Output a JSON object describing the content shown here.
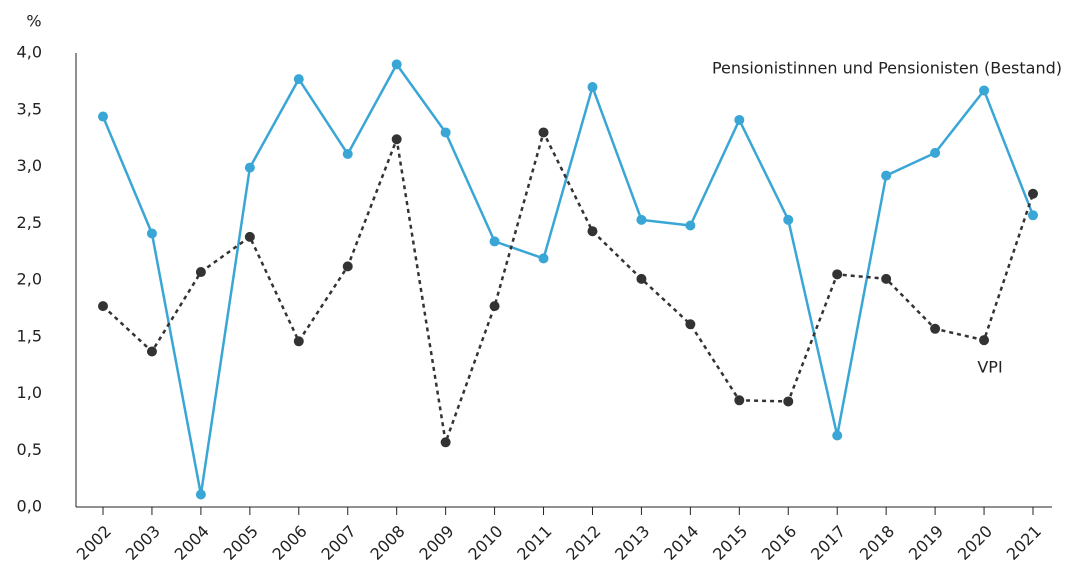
{
  "chart_data": {
    "type": "line",
    "y_unit": "%",
    "categories": [
      "2002",
      "2003",
      "2004",
      "2005",
      "2006",
      "2007",
      "2008",
      "2009",
      "2010",
      "2011",
      "2012",
      "2013",
      "2014",
      "2015",
      "2016",
      "2017",
      "2018",
      "2019",
      "2020",
      "2021"
    ],
    "series": [
      {
        "name": "Pensionistinnen und Pensionisten (Bestand)",
        "color": "#3aa6d6",
        "dash": false,
        "values": [
          3.44,
          2.41,
          0.11,
          2.99,
          3.77,
          3.11,
          3.9,
          3.3,
          2.34,
          2.19,
          3.7,
          2.53,
          2.48,
          3.41,
          2.53,
          0.63,
          2.92,
          3.12,
          3.67,
          2.57
        ]
      },
      {
        "name": "VPI",
        "color": "#333333",
        "dash": true,
        "values": [
          1.77,
          1.37,
          2.07,
          2.38,
          1.46,
          2.12,
          3.24,
          0.57,
          1.77,
          3.3,
          2.43,
          2.01,
          1.61,
          0.94,
          0.93,
          2.05,
          2.01,
          1.57,
          1.47,
          2.76
        ]
      }
    ],
    "ylim": [
      0,
      4
    ],
    "yticks": [
      {
        "value": 0,
        "label": "0,0"
      },
      {
        "value": 0.5,
        "label": "0,5"
      },
      {
        "value": 1,
        "label": "1,0"
      },
      {
        "value": 1.5,
        "label": "1,5"
      },
      {
        "value": 2,
        "label": "2,0"
      },
      {
        "value": 2.5,
        "label": "2,5"
      },
      {
        "value": 3,
        "label": "3,0"
      },
      {
        "value": 3.5,
        "label": "3,5"
      },
      {
        "value": 4,
        "label": "4,0"
      }
    ],
    "grid": false
  }
}
